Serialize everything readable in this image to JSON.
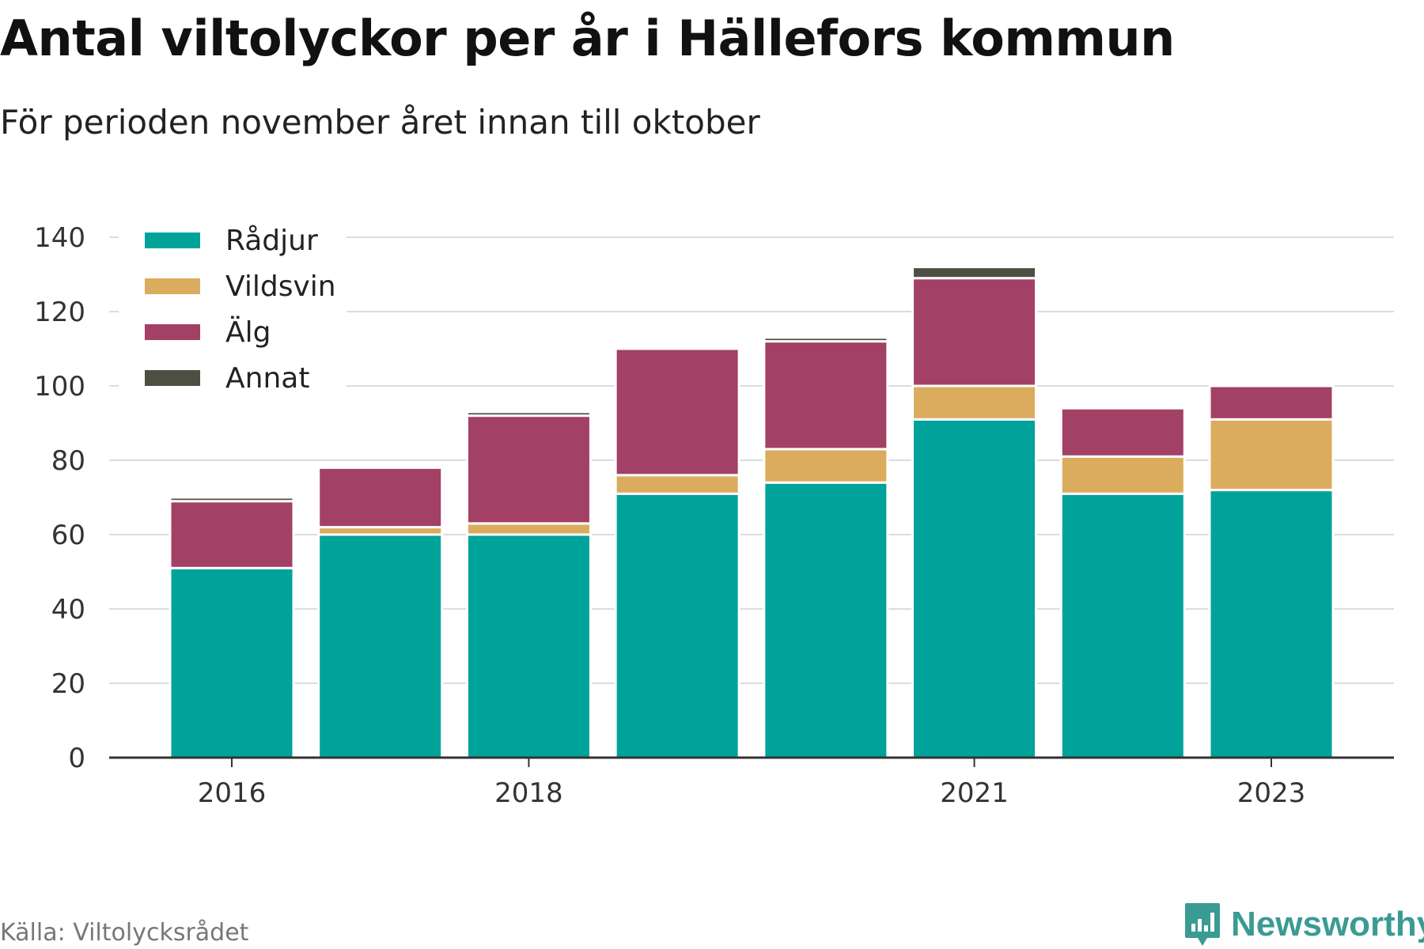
{
  "header": {
    "title": "Antal viltolyckor per år i Hällefors kommun",
    "subtitle": "För perioden november året innan till oktober"
  },
  "footer": {
    "source": "Källa: Viltolycksrådet",
    "brand": "Newsworthy",
    "brand_icon": "bar-chart-icon"
  },
  "colors": {
    "Rådjur": "#00a39a",
    "Vildsvin": "#dbac5d",
    "Älg": "#a34066",
    "Annat": "#4e4f43",
    "grid": "#dcdcdc",
    "axis": "#333333"
  },
  "chart_data": {
    "type": "bar",
    "stacked": true,
    "x": [
      2016,
      2017,
      2018,
      2019,
      2020,
      2021,
      2022,
      2023
    ],
    "x_tick_labels": [
      "2016",
      "2018",
      "2021",
      "2023"
    ],
    "x_tick_values": [
      2016,
      2018,
      2021,
      2023
    ],
    "y_ticks": [
      0,
      20,
      40,
      60,
      80,
      100,
      120,
      140
    ],
    "ylim": [
      0,
      140
    ],
    "grid": true,
    "legend_position": "top-left",
    "series": [
      {
        "name": "Rådjur",
        "values": [
          51,
          60,
          60,
          71,
          74,
          91,
          71,
          72
        ]
      },
      {
        "name": "Vildsvin",
        "values": [
          0,
          2,
          3,
          5,
          9,
          9,
          10,
          19
        ]
      },
      {
        "name": "Älg",
        "values": [
          18,
          16,
          29,
          34,
          29,
          29,
          13,
          9
        ]
      },
      {
        "name": "Annat",
        "values": [
          1,
          0,
          1,
          0,
          1,
          3,
          0,
          0
        ]
      }
    ]
  }
}
